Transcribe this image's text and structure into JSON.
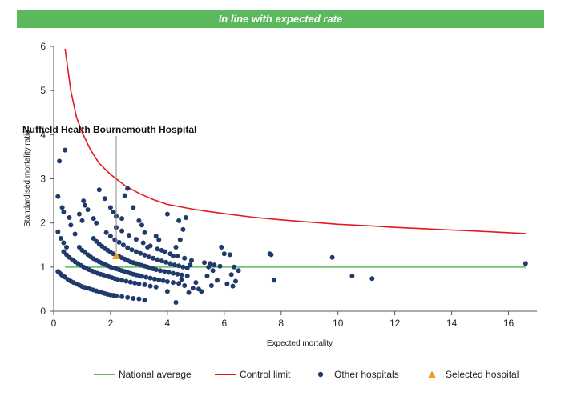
{
  "banner": {
    "text": "In line with expected rate"
  },
  "chart_data": {
    "type": "scatter",
    "xlabel": "Expected mortality",
    "ylabel": "Standardised mortality ratio",
    "xlim": [
      0,
      17
    ],
    "ylim": [
      0,
      6
    ],
    "xticks": [
      0,
      2,
      4,
      6,
      8,
      10,
      12,
      14,
      16
    ],
    "yticks": [
      0,
      1,
      2,
      3,
      4,
      5,
      6
    ],
    "grid": false,
    "legend_position": "bottom",
    "colors": {
      "national_average": "#5cb85c",
      "control_limit": "#e31a1c",
      "other_hospitals": "#1f3a6b",
      "selected_hospital": "#f59a23"
    },
    "national_average": {
      "name": "National average",
      "y": 1.0,
      "x_range": [
        0.4,
        16.6
      ]
    },
    "control_limit": {
      "name": "Control limit",
      "points": [
        [
          0.4,
          5.95
        ],
        [
          0.6,
          5.0
        ],
        [
          0.8,
          4.4
        ],
        [
          1.0,
          4.05
        ],
        [
          1.3,
          3.65
        ],
        [
          1.6,
          3.35
        ],
        [
          2.0,
          3.1
        ],
        [
          2.5,
          2.85
        ],
        [
          3.0,
          2.67
        ],
        [
          3.5,
          2.53
        ],
        [
          4.0,
          2.42
        ],
        [
          5.0,
          2.3
        ],
        [
          6.0,
          2.21
        ],
        [
          7.0,
          2.13
        ],
        [
          8.0,
          2.07
        ],
        [
          9.0,
          2.02
        ],
        [
          10.0,
          1.97
        ],
        [
          11.0,
          1.94
        ],
        [
          12.0,
          1.9
        ],
        [
          13.0,
          1.87
        ],
        [
          14.0,
          1.84
        ],
        [
          15.0,
          1.81
        ],
        [
          16.6,
          1.76
        ]
      ]
    },
    "other_hospitals": {
      "name": "Other hospitals",
      "points": [
        [
          0.15,
          0.9
        ],
        [
          0.2,
          0.87
        ],
        [
          0.25,
          0.84
        ],
        [
          0.3,
          0.81
        ],
        [
          0.35,
          0.79
        ],
        [
          0.4,
          0.77
        ],
        [
          0.5,
          0.72
        ],
        [
          0.6,
          0.68
        ],
        [
          0.7,
          0.65
        ],
        [
          0.8,
          0.62
        ],
        [
          0.9,
          0.59
        ],
        [
          1.0,
          0.56
        ],
        [
          1.1,
          0.54
        ],
        [
          1.2,
          0.52
        ],
        [
          1.3,
          0.5
        ],
        [
          1.4,
          0.48
        ],
        [
          1.5,
          0.46
        ],
        [
          1.6,
          0.44
        ],
        [
          1.7,
          0.42
        ],
        [
          1.8,
          0.4
        ],
        [
          1.9,
          0.38
        ],
        [
          2.0,
          0.37
        ],
        [
          2.1,
          0.36
        ],
        [
          2.2,
          0.35
        ],
        [
          2.4,
          0.33
        ],
        [
          2.6,
          0.31
        ],
        [
          2.8,
          0.29
        ],
        [
          3.0,
          0.28
        ],
        [
          0.35,
          1.35
        ],
        [
          0.45,
          1.28
        ],
        [
          0.55,
          1.22
        ],
        [
          0.65,
          1.17
        ],
        [
          0.75,
          1.12
        ],
        [
          0.85,
          1.08
        ],
        [
          0.95,
          1.04
        ],
        [
          1.05,
          1.0
        ],
        [
          1.15,
          0.97
        ],
        [
          1.25,
          0.94
        ],
        [
          1.35,
          0.91
        ],
        [
          1.45,
          0.88
        ],
        [
          1.55,
          0.86
        ],
        [
          1.65,
          0.84
        ],
        [
          1.75,
          0.82
        ],
        [
          1.85,
          0.8
        ],
        [
          1.95,
          0.78
        ],
        [
          2.05,
          0.76
        ],
        [
          2.15,
          0.74
        ],
        [
          2.25,
          0.72
        ],
        [
          2.4,
          0.7
        ],
        [
          2.55,
          0.68
        ],
        [
          2.7,
          0.66
        ],
        [
          2.85,
          0.64
        ],
        [
          3.0,
          0.62
        ],
        [
          3.2,
          0.6
        ],
        [
          3.4,
          0.57
        ],
        [
          3.6,
          0.55
        ],
        [
          0.9,
          1.45
        ],
        [
          1.0,
          1.38
        ],
        [
          1.1,
          1.33
        ],
        [
          1.2,
          1.28
        ],
        [
          1.3,
          1.23
        ],
        [
          1.4,
          1.19
        ],
        [
          1.5,
          1.15
        ],
        [
          1.6,
          1.12
        ],
        [
          1.7,
          1.09
        ],
        [
          1.8,
          1.06
        ],
        [
          1.9,
          1.03
        ],
        [
          2.0,
          1.0
        ],
        [
          2.1,
          0.98
        ],
        [
          2.2,
          0.96
        ],
        [
          2.3,
          0.94
        ],
        [
          2.4,
          0.92
        ],
        [
          2.5,
          0.9
        ],
        [
          2.6,
          0.88
        ],
        [
          2.7,
          0.86
        ],
        [
          2.8,
          0.84
        ],
        [
          2.9,
          0.82
        ],
        [
          3.0,
          0.81
        ],
        [
          3.1,
          0.79
        ],
        [
          3.25,
          0.77
        ],
        [
          3.4,
          0.75
        ],
        [
          3.55,
          0.73
        ],
        [
          3.7,
          0.71
        ],
        [
          3.85,
          0.69
        ],
        [
          4.0,
          0.67
        ],
        [
          4.2,
          0.65
        ],
        [
          4.4,
          0.63
        ],
        [
          1.4,
          1.65
        ],
        [
          1.5,
          1.58
        ],
        [
          1.6,
          1.52
        ],
        [
          1.7,
          1.47
        ],
        [
          1.8,
          1.42
        ],
        [
          1.9,
          1.38
        ],
        [
          2.0,
          1.34
        ],
        [
          2.1,
          1.3
        ],
        [
          2.3,
          1.24
        ],
        [
          2.4,
          1.21
        ],
        [
          2.5,
          1.18
        ],
        [
          2.6,
          1.15
        ],
        [
          2.7,
          1.12
        ],
        [
          2.8,
          1.1
        ],
        [
          2.9,
          1.08
        ],
        [
          3.0,
          1.06
        ],
        [
          3.1,
          1.04
        ],
        [
          3.2,
          1.02
        ],
        [
          3.3,
          1.0
        ],
        [
          3.4,
          0.98
        ],
        [
          3.5,
          0.96
        ],
        [
          3.6,
          0.94
        ],
        [
          3.75,
          0.92
        ],
        [
          3.9,
          0.9
        ],
        [
          4.05,
          0.88
        ],
        [
          4.2,
          0.86
        ],
        [
          4.35,
          0.84
        ],
        [
          4.5,
          0.82
        ],
        [
          4.7,
          0.8
        ],
        [
          1.85,
          1.78
        ],
        [
          2.0,
          1.7
        ],
        [
          2.15,
          1.62
        ],
        [
          2.3,
          1.56
        ],
        [
          2.45,
          1.5
        ],
        [
          2.6,
          1.44
        ],
        [
          2.75,
          1.39
        ],
        [
          2.9,
          1.35
        ],
        [
          3.05,
          1.31
        ],
        [
          3.2,
          1.27
        ],
        [
          3.35,
          1.23
        ],
        [
          3.5,
          1.2
        ],
        [
          3.65,
          1.17
        ],
        [
          3.8,
          1.14
        ],
        [
          3.95,
          1.11
        ],
        [
          4.1,
          1.08
        ],
        [
          4.25,
          1.05
        ],
        [
          4.4,
          1.03
        ],
        [
          4.55,
          1.0
        ],
        [
          4.7,
          0.98
        ],
        [
          2.2,
          1.9
        ],
        [
          2.4,
          1.82
        ],
        [
          2.65,
          1.72
        ],
        [
          2.9,
          1.63
        ],
        [
          3.15,
          1.55
        ],
        [
          3.4,
          1.48
        ],
        [
          3.65,
          1.41
        ],
        [
          3.9,
          1.35
        ],
        [
          4.1,
          1.3
        ],
        [
          4.35,
          1.25
        ],
        [
          4.6,
          1.2
        ],
        [
          4.85,
          1.15
        ],
        [
          0.15,
          1.8
        ],
        [
          0.25,
          1.65
        ],
        [
          0.35,
          1.55
        ],
        [
          0.45,
          1.45
        ],
        [
          0.2,
          3.4
        ],
        [
          0.4,
          3.65
        ],
        [
          0.15,
          2.6
        ],
        [
          0.3,
          2.35
        ],
        [
          0.35,
          2.25
        ],
        [
          0.55,
          2.12
        ],
        [
          0.6,
          1.95
        ],
        [
          0.75,
          1.75
        ],
        [
          0.9,
          2.2
        ],
        [
          1.0,
          2.05
        ],
        [
          1.05,
          2.5
        ],
        [
          1.1,
          2.4
        ],
        [
          1.2,
          2.3
        ],
        [
          1.4,
          2.1
        ],
        [
          1.5,
          2.0
        ],
        [
          1.6,
          2.75
        ],
        [
          1.8,
          2.55
        ],
        [
          2.0,
          2.35
        ],
        [
          2.1,
          2.25
        ],
        [
          2.2,
          2.15
        ],
        [
          2.4,
          2.1
        ],
        [
          2.5,
          2.62
        ],
        [
          2.6,
          2.78
        ],
        [
          2.8,
          2.35
        ],
        [
          3.0,
          2.05
        ],
        [
          3.1,
          1.95
        ],
        [
          3.2,
          1.78
        ],
        [
          3.6,
          1.7
        ],
        [
          3.3,
          1.45
        ],
        [
          3.7,
          1.62
        ],
        [
          3.8,
          1.38
        ],
        [
          4.0,
          2.2
        ],
        [
          4.2,
          1.25
        ],
        [
          4.3,
          1.45
        ],
        [
          4.4,
          2.05
        ],
        [
          4.45,
          1.62
        ],
        [
          4.55,
          1.85
        ],
        [
          4.65,
          2.12
        ],
        [
          4.8,
          1.05
        ],
        [
          4.5,
          0.72
        ],
        [
          4.6,
          0.58
        ],
        [
          4.75,
          0.42
        ],
        [
          4.9,
          0.52
        ],
        [
          5.0,
          0.65
        ],
        [
          5.1,
          0.5
        ],
        [
          5.2,
          0.45
        ],
        [
          5.3,
          1.1
        ],
        [
          5.4,
          0.8
        ],
        [
          5.45,
          1.0
        ],
        [
          5.5,
          1.08
        ],
        [
          5.55,
          0.58
        ],
        [
          5.6,
          0.92
        ],
        [
          5.65,
          1.05
        ],
        [
          5.75,
          0.7
        ],
        [
          5.85,
          1.02
        ],
        [
          5.9,
          1.45
        ],
        [
          6.0,
          1.3
        ],
        [
          6.1,
          0.62
        ],
        [
          6.2,
          1.28
        ],
        [
          6.25,
          0.83
        ],
        [
          6.3,
          0.57
        ],
        [
          6.4,
          0.68
        ],
        [
          6.5,
          0.92
        ],
        [
          6.35,
          1.0
        ],
        [
          4.3,
          0.2
        ],
        [
          3.2,
          0.25
        ],
        [
          4.0,
          0.45
        ],
        [
          7.6,
          1.3
        ],
        [
          7.65,
          1.28
        ],
        [
          7.75,
          0.7
        ],
        [
          9.8,
          1.22
        ],
        [
          10.5,
          0.8
        ],
        [
          11.2,
          0.74
        ],
        [
          16.6,
          1.08
        ]
      ]
    },
    "selected_hospital": {
      "name": "Selected hospital",
      "label": "Nuffield Health Bournemouth Hospital",
      "x": 2.2,
      "y": 1.25
    }
  }
}
